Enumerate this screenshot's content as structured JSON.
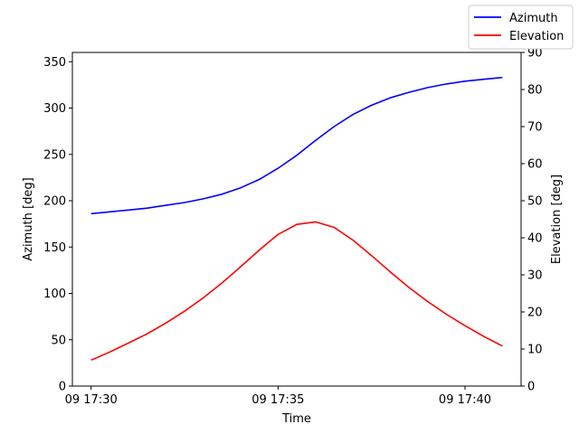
{
  "chart_data": {
    "type": "line",
    "xlabel": "Time",
    "ylabel_left": "Azimuth [deg]",
    "ylabel_right": "Elevation [deg]",
    "x_ticks": [
      "09 17:30",
      "09 17:35",
      "09 17:40"
    ],
    "x_tick_minutes": [
      0,
      5,
      10
    ],
    "xlim_minutes": [
      -0.5,
      11.5
    ],
    "ylim_left": [
      0,
      360
    ],
    "yticks_left": [
      0,
      50,
      100,
      150,
      200,
      250,
      300,
      350
    ],
    "ylim_right": [
      0,
      90
    ],
    "yticks_right": [
      0,
      10,
      20,
      30,
      40,
      50,
      60,
      70,
      80,
      90
    ],
    "legend_position": "top-right",
    "grid": false,
    "x_minutes": [
      0,
      0.5,
      1,
      1.5,
      2,
      2.5,
      3,
      3.5,
      4,
      4.5,
      5,
      5.5,
      6,
      6.5,
      7,
      7.5,
      8,
      8.5,
      9,
      9.5,
      10,
      10.5,
      11
    ],
    "series": [
      {
        "name": "Azimuth",
        "axis": "left",
        "color": "#0000ff",
        "values": [
          186,
          188,
          190,
          192,
          195,
          198,
          202,
          207,
          214,
          223,
          235,
          249,
          265,
          280,
          293,
          303,
          311,
          317,
          322,
          326,
          329,
          331,
          333
        ]
      },
      {
        "name": "Elevation",
        "axis": "right",
        "color": "#ff0000",
        "values": [
          7.0,
          9.2,
          11.6,
          14.1,
          17.0,
          20.2,
          23.8,
          27.8,
          32.2,
          36.7,
          40.9,
          43.6,
          44.3,
          42.8,
          39.4,
          35.2,
          30.8,
          26.6,
          22.8,
          19.4,
          16.3,
          13.4,
          10.8
        ]
      }
    ]
  }
}
